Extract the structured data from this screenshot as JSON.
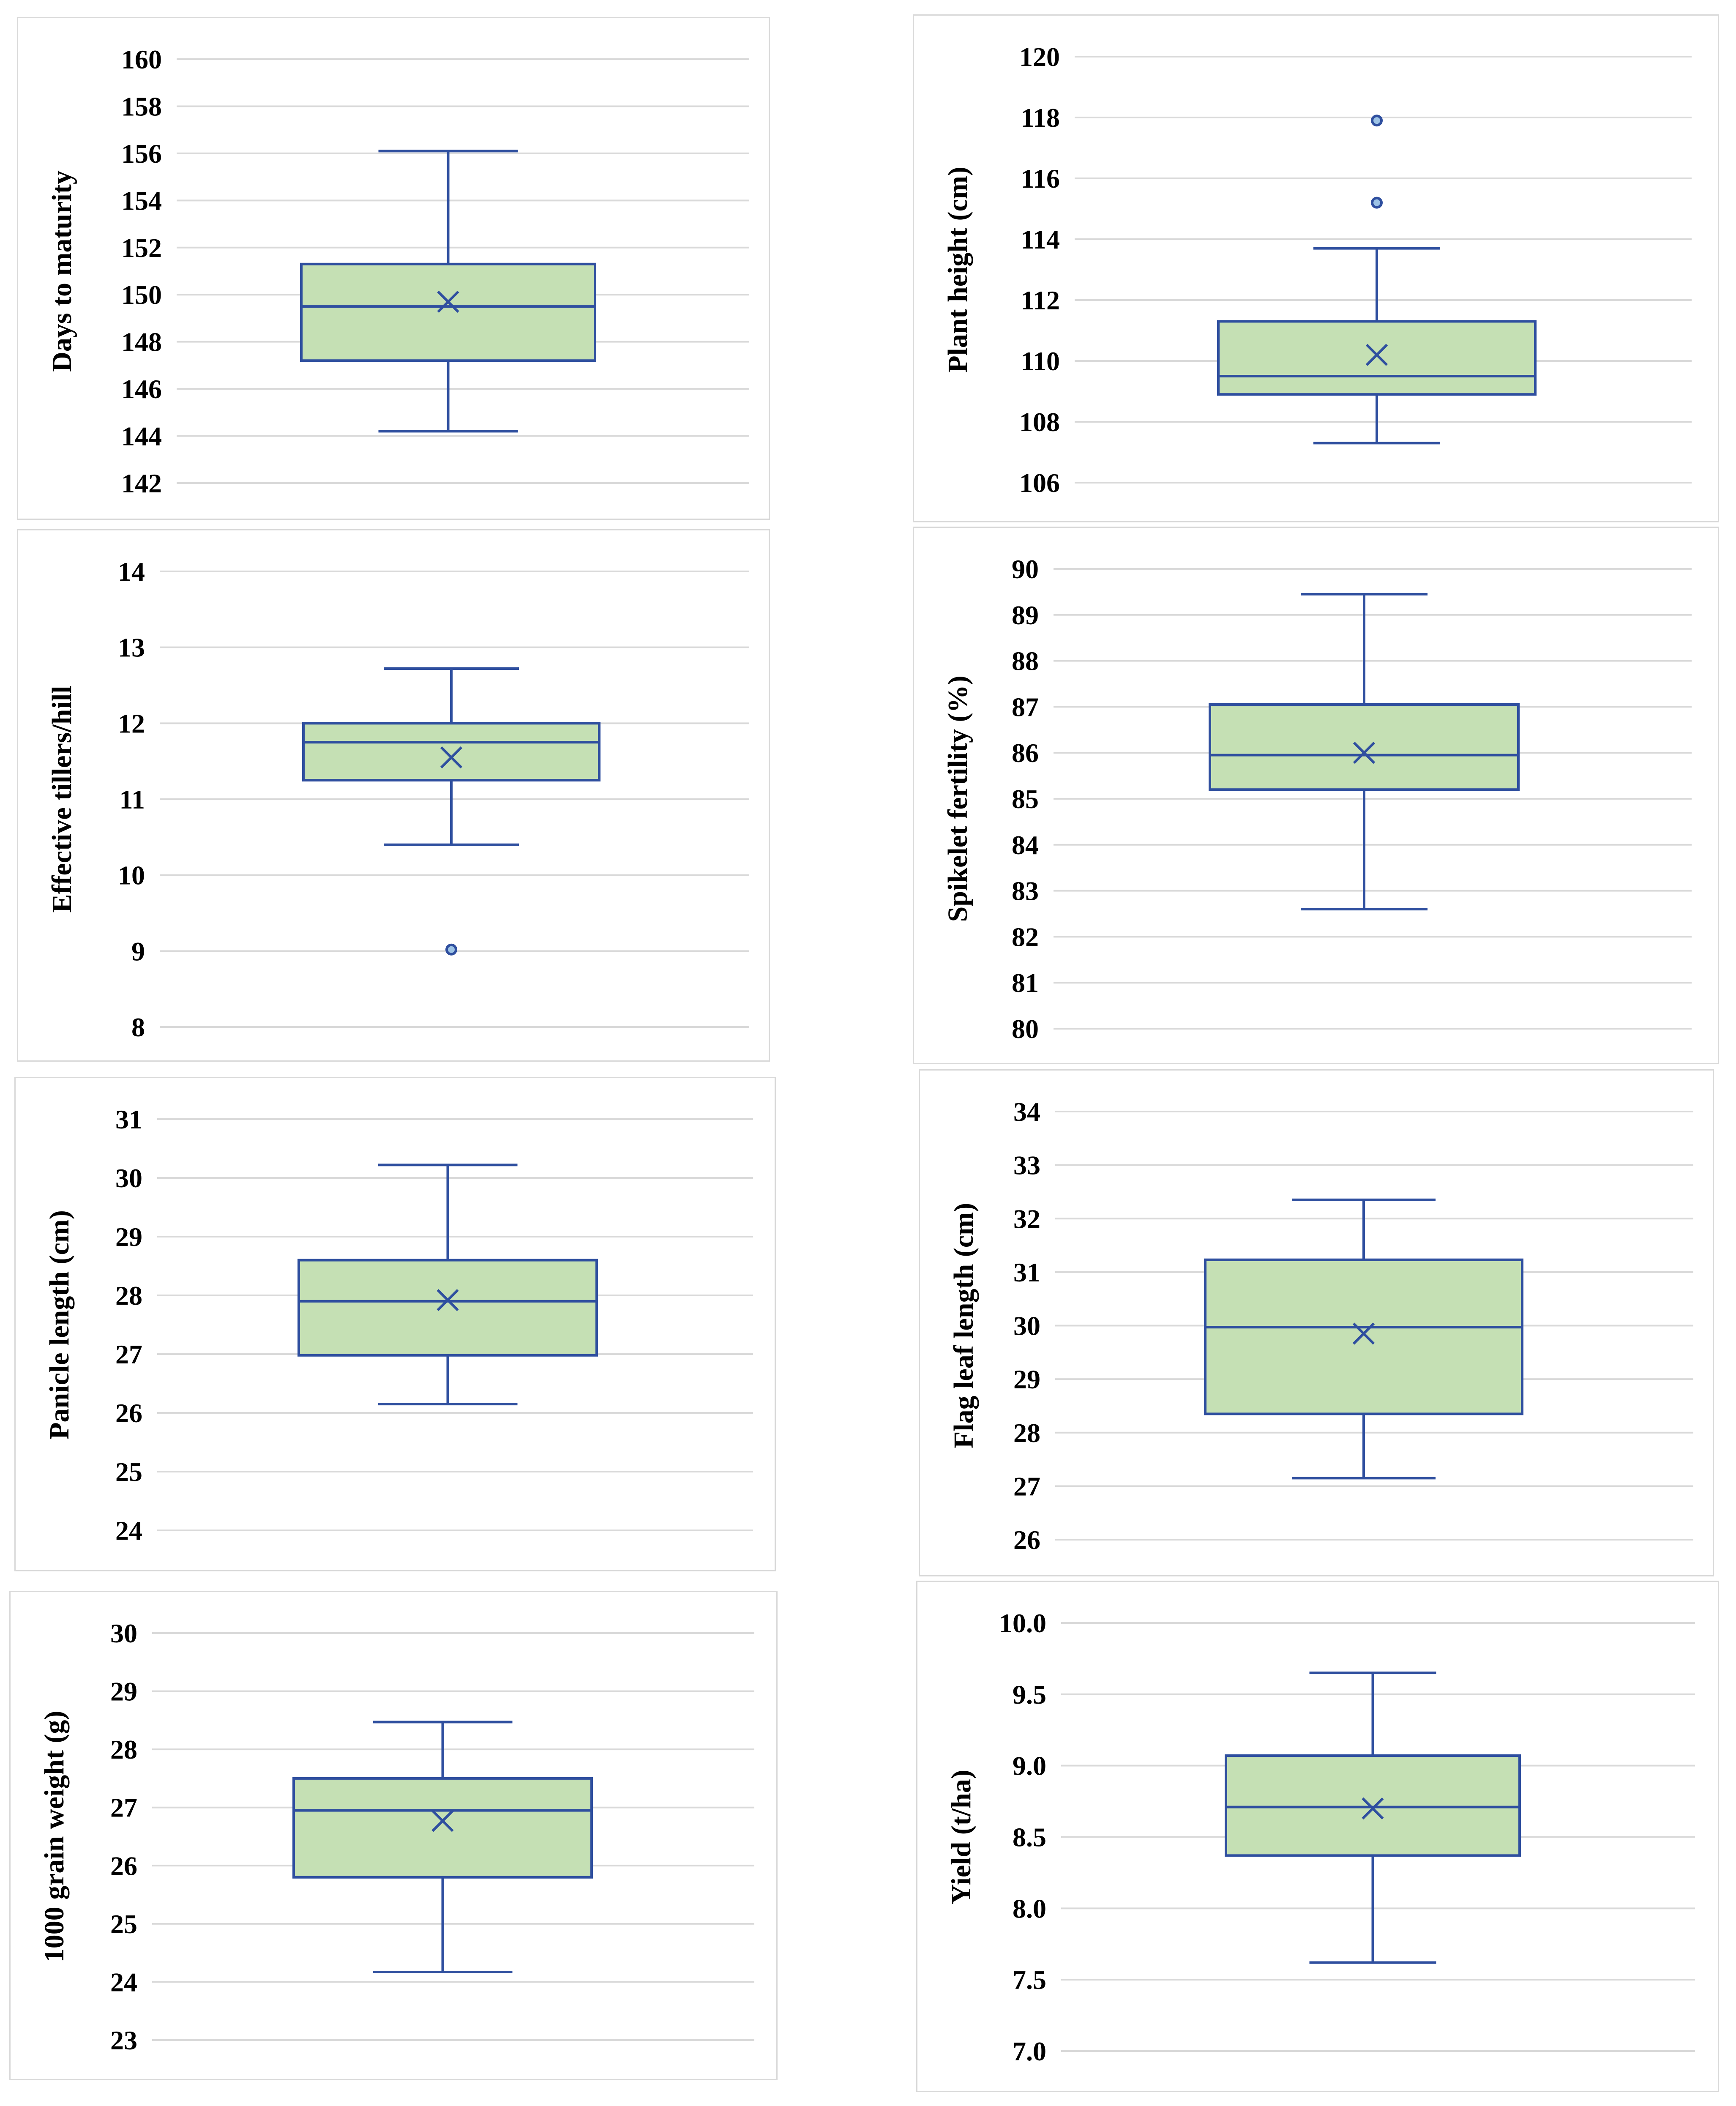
{
  "colors": {
    "box_fill": "#c5e0b4",
    "box_stroke": "#2f4f9f",
    "outlier_fill": "#9dc3e6",
    "grid": "#d9d9d9"
  },
  "chart_data": [
    {
      "type": "box",
      "ylabel": "Days to maturity",
      "yticks": [
        "142",
        "144",
        "146",
        "148",
        "150",
        "152",
        "154",
        "156",
        "158",
        "160"
      ],
      "ylim": [
        142,
        160
      ],
      "min": 144.2,
      "q1": 147.2,
      "median": 149.5,
      "q3": 151.3,
      "max": 156.1,
      "mean": 149.7,
      "outliers": []
    },
    {
      "type": "box",
      "ylabel": "Plant height (cm)",
      "yticks": [
        "106",
        "108",
        "110",
        "112",
        "114",
        "116",
        "118",
        "120"
      ],
      "ylim": [
        106,
        120
      ],
      "min": 107.3,
      "q1": 108.9,
      "median": 109.5,
      "q3": 111.3,
      "max": 113.7,
      "mean": 110.2,
      "outliers": [
        115.2,
        117.9
      ]
    },
    {
      "type": "box",
      "ylabel": "Effective tillers/hill",
      "yticks": [
        "8",
        "9",
        "10",
        "11",
        "12",
        "13",
        "14"
      ],
      "ylim": [
        8,
        14
      ],
      "min": 10.4,
      "q1": 11.25,
      "median": 11.75,
      "q3": 12.0,
      "max": 12.72,
      "mean": 11.55,
      "outliers": [
        9.02
      ]
    },
    {
      "type": "box",
      "ylabel": "Spikelet fertility (%)",
      "yticks": [
        "80",
        "81",
        "82",
        "83",
        "84",
        "85",
        "86",
        "87",
        "88",
        "89",
        "90"
      ],
      "ylim": [
        80,
        90
      ],
      "min": 82.6,
      "q1": 85.2,
      "median": 85.95,
      "q3": 87.05,
      "max": 89.45,
      "mean": 86.0,
      "outliers": []
    },
    {
      "type": "box",
      "ylabel": "Panicle length (cm)",
      "yticks": [
        "24",
        "25",
        "26",
        "27",
        "28",
        "29",
        "30",
        "31"
      ],
      "ylim": [
        24,
        31
      ],
      "min": 26.15,
      "q1": 26.98,
      "median": 27.9,
      "q3": 28.6,
      "max": 30.22,
      "mean": 27.92,
      "outliers": []
    },
    {
      "type": "box",
      "ylabel": "Flag leaf length (cm)",
      "yticks": [
        "26",
        "27",
        "28",
        "29",
        "30",
        "31",
        "32",
        "33",
        "34"
      ],
      "ylim": [
        26,
        34
      ],
      "min": 27.15,
      "q1": 28.35,
      "median": 29.97,
      "q3": 31.23,
      "max": 32.35,
      "mean": 29.85,
      "outliers": []
    },
    {
      "type": "box",
      "ylabel": "1000 grain weight (g)",
      "yticks": [
        "23",
        "24",
        "25",
        "26",
        "27",
        "28",
        "29",
        "30"
      ],
      "ylim": [
        23,
        30
      ],
      "min": 24.17,
      "q1": 25.8,
      "median": 26.95,
      "q3": 27.5,
      "max": 28.47,
      "mean": 26.77,
      "outliers": []
    },
    {
      "type": "box",
      "ylabel": "Yield (t/ha)",
      "yticks": [
        "7.0",
        "7.5",
        "8.0",
        "8.5",
        "9.0",
        "9.5",
        "10.0"
      ],
      "ylim": [
        7.0,
        10.0
      ],
      "min": 7.62,
      "q1": 8.37,
      "median": 8.71,
      "q3": 9.07,
      "max": 9.65,
      "mean": 8.7,
      "outliers": []
    }
  ]
}
